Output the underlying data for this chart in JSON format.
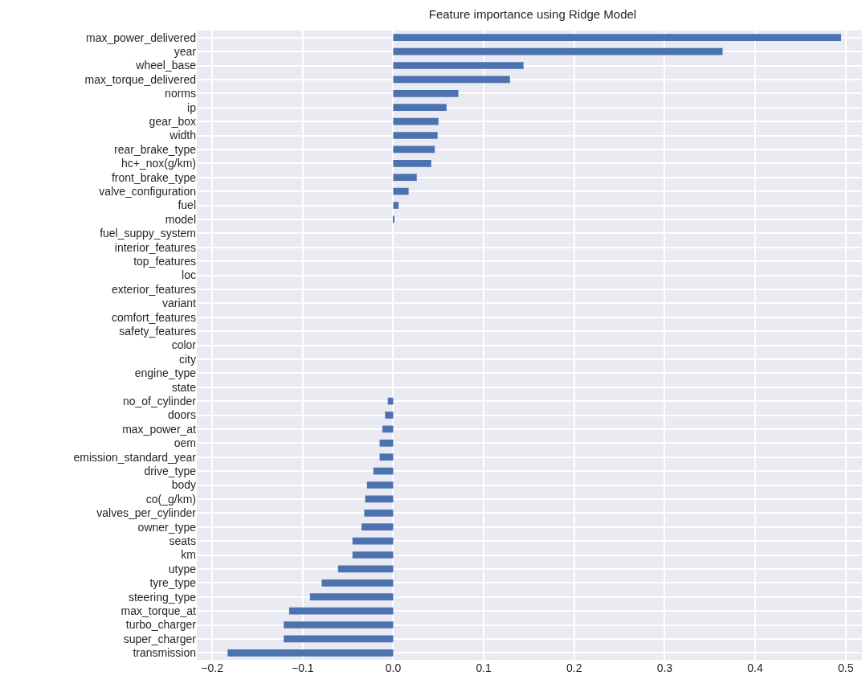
{
  "chart_data": {
    "type": "bar",
    "orientation": "horizontal",
    "title": "Feature importance using Ridge Model",
    "categories": [
      "max_power_delivered",
      "year",
      "wheel_base",
      "max_torque_delivered",
      "norms",
      "ip",
      "gear_box",
      "width",
      "rear_brake_type",
      "hc+_nox(g/km)",
      "front_brake_type",
      "valve_configuration",
      "fuel",
      "model",
      "fuel_suppy_system",
      "interior_features",
      "top_features",
      "loc",
      "exterior_features",
      "variant",
      "comfort_features",
      "safety_features",
      "color",
      "city",
      "engine_type",
      "state",
      "no_of_cylinder",
      "doors",
      "max_power_at",
      "oem",
      "emission_standard_year",
      "drive_type",
      "body",
      "co(_g/km)",
      "valves_per_cylinder",
      "owner_type",
      "seats",
      "km",
      "utype",
      "tyre_type",
      "steering_type",
      "max_torque_at",
      "turbo_charger",
      "super_charger",
      "transmission"
    ],
    "values": [
      0.495,
      0.364,
      0.144,
      0.129,
      0.072,
      0.059,
      0.05,
      0.049,
      0.046,
      0.042,
      0.026,
      0.017,
      0.006,
      0.001,
      0,
      0,
      0,
      0,
      0,
      0,
      0,
      0,
      0,
      0,
      0,
      0,
      -0.006,
      -0.009,
      -0.012,
      -0.015,
      -0.015,
      -0.022,
      -0.029,
      -0.031,
      -0.032,
      -0.035,
      -0.045,
      -0.045,
      -0.061,
      -0.079,
      -0.092,
      -0.115,
      -0.121,
      -0.121,
      -0.183
    ],
    "color": "#4c72b0",
    "xlim": [
      -0.217,
      0.518
    ],
    "xticks": [
      {
        "value": -0.2,
        "label": "−0.2"
      },
      {
        "value": -0.1,
        "label": "−0.1"
      },
      {
        "value": 0,
        "label": "0.0"
      },
      {
        "value": 0.1,
        "label": "0.1"
      },
      {
        "value": 0.2,
        "label": "0.2"
      },
      {
        "value": 0.3,
        "label": "0.3"
      },
      {
        "value": 0.4,
        "label": "0.4"
      },
      {
        "value": 0.5,
        "label": "0.5"
      }
    ],
    "grid": true
  }
}
